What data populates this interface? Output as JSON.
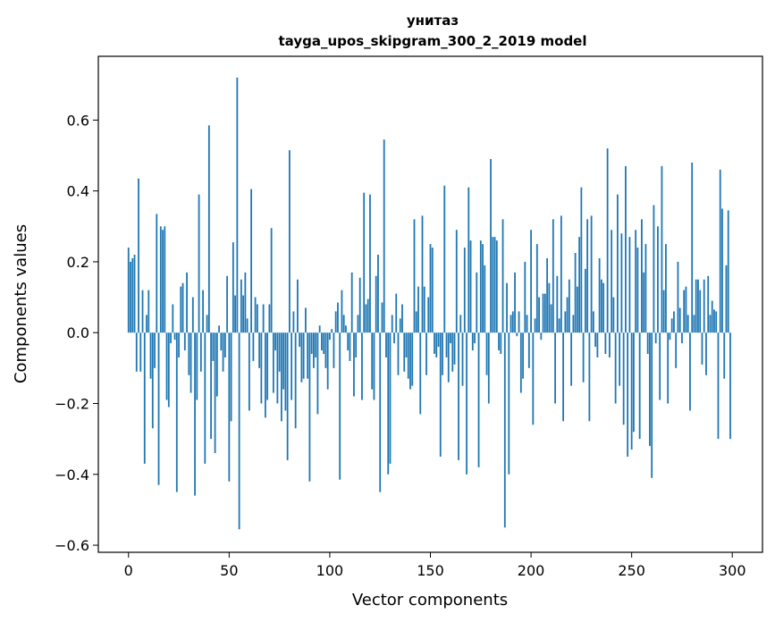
{
  "chart_data": {
    "type": "bar",
    "title": "унитаз",
    "subtitle": "tayga_upos_skipgram_300_2_2019 model",
    "xlabel": "Vector components",
    "ylabel": "Components values",
    "xlim": [
      -15,
      315
    ],
    "ylim": [
      -0.62,
      0.78
    ],
    "x_ticks": [
      0,
      50,
      100,
      150,
      200,
      250,
      300
    ],
    "y_ticks": [
      -0.6,
      -0.4,
      -0.2,
      0.0,
      0.2,
      0.4,
      0.6
    ],
    "y_tick_labels": [
      "−0.6",
      "−0.4",
      "−0.2",
      "0.0",
      "0.2",
      "0.4",
      "0.6"
    ],
    "bar_color": "#1f77b4",
    "x": [
      0,
      1,
      2,
      3,
      4,
      5,
      6,
      7,
      8,
      9,
      10,
      11,
      12,
      13,
      14,
      15,
      16,
      17,
      18,
      19,
      20,
      21,
      22,
      23,
      24,
      25,
      26,
      27,
      28,
      29,
      30,
      31,
      32,
      33,
      34,
      35,
      36,
      37,
      38,
      39,
      40,
      41,
      42,
      43,
      44,
      45,
      46,
      47,
      48,
      49,
      50,
      51,
      52,
      53,
      54,
      55,
      56,
      57,
      58,
      59,
      60,
      61,
      62,
      63,
      64,
      65,
      66,
      67,
      68,
      69,
      70,
      71,
      72,
      73,
      74,
      75,
      76,
      77,
      78,
      79,
      80,
      81,
      82,
      83,
      84,
      85,
      86,
      87,
      88,
      89,
      90,
      91,
      92,
      93,
      94,
      95,
      96,
      97,
      98,
      99,
      100,
      101,
      102,
      103,
      104,
      105,
      106,
      107,
      108,
      109,
      110,
      111,
      112,
      113,
      114,
      115,
      116,
      117,
      118,
      119,
      120,
      121,
      122,
      123,
      124,
      125,
      126,
      127,
      128,
      129,
      130,
      131,
      132,
      133,
      134,
      135,
      136,
      137,
      138,
      139,
      140,
      141,
      142,
      143,
      144,
      145,
      146,
      147,
      148,
      149,
      150,
      151,
      152,
      153,
      154,
      155,
      156,
      157,
      158,
      159,
      160,
      161,
      162,
      163,
      164,
      165,
      166,
      167,
      168,
      169,
      170,
      171,
      172,
      173,
      174,
      175,
      176,
      177,
      178,
      179,
      180,
      181,
      182,
      183,
      184,
      185,
      186,
      187,
      188,
      189,
      190,
      191,
      192,
      193,
      194,
      195,
      196,
      197,
      198,
      199,
      200,
      201,
      202,
      203,
      204,
      205,
      206,
      207,
      208,
      209,
      210,
      211,
      212,
      213,
      214,
      215,
      216,
      217,
      218,
      219,
      220,
      221,
      222,
      223,
      224,
      225,
      226,
      227,
      228,
      229,
      230,
      231,
      232,
      233,
      234,
      235,
      236,
      237,
      238,
      239,
      240,
      241,
      242,
      243,
      244,
      245,
      246,
      247,
      248,
      249,
      250,
      251,
      252,
      253,
      254,
      255,
      256,
      257,
      258,
      259,
      260,
      261,
      262,
      263,
      264,
      265,
      266,
      267,
      268,
      269,
      270,
      271,
      272,
      273,
      274,
      275,
      276,
      277,
      278,
      279,
      280,
      281,
      282,
      283,
      284,
      285,
      286,
      287,
      288,
      289,
      290,
      291,
      292,
      293,
      294,
      295,
      296,
      297,
      298,
      299
    ],
    "values": [
      0.24,
      0.2,
      0.21,
      0.22,
      -0.11,
      0.435,
      -0.11,
      0.12,
      -0.37,
      0.05,
      0.12,
      -0.13,
      -0.27,
      -0.1,
      0.335,
      -0.43,
      0.3,
      0.29,
      0.3,
      -0.19,
      -0.21,
      -0.03,
      0.08,
      -0.02,
      -0.45,
      -0.07,
      0.13,
      0.14,
      -0.05,
      0.17,
      -0.12,
      -0.17,
      0.1,
      -0.46,
      -0.19,
      0.39,
      -0.11,
      0.12,
      -0.37,
      0.05,
      0.585,
      -0.3,
      -0.08,
      -0.34,
      -0.18,
      0.02,
      -0.05,
      -0.11,
      -0.07,
      0.16,
      -0.42,
      -0.25,
      0.255,
      0.105,
      0.72,
      -0.555,
      0.15,
      0.105,
      0.17,
      0.04,
      -0.22,
      0.405,
      -0.08,
      0.1,
      0.08,
      -0.1,
      -0.2,
      0.08,
      -0.24,
      -0.19,
      0.08,
      0.295,
      -0.17,
      -0.05,
      -0.2,
      -0.11,
      -0.25,
      -0.16,
      -0.22,
      -0.36,
      0.515,
      -0.19,
      0.06,
      -0.27,
      0.15,
      -0.04,
      -0.14,
      -0.13,
      0.07,
      -0.13,
      -0.42,
      -0.06,
      -0.1,
      -0.07,
      -0.23,
      0.02,
      -0.05,
      -0.06,
      -0.1,
      -0.16,
      -0.02,
      0.01,
      -0.1,
      0.06,
      0.085,
      -0.415,
      0.12,
      0.05,
      0.02,
      -0.05,
      -0.08,
      0.17,
      -0.18,
      -0.07,
      0.05,
      0.155,
      -0.19,
      0.395,
      0.08,
      0.095,
      0.39,
      -0.16,
      -0.19,
      0.16,
      0.22,
      -0.45,
      0.085,
      0.545,
      -0.07,
      -0.4,
      -0.37,
      0.05,
      -0.03,
      0.11,
      -0.12,
      0.04,
      0.08,
      -0.11,
      -0.07,
      -0.13,
      -0.16,
      -0.15,
      0.32,
      0.06,
      0.13,
      -0.23,
      0.33,
      0.13,
      -0.12,
      0.1,
      0.25,
      0.24,
      -0.06,
      -0.07,
      -0.04,
      -0.35,
      -0.12,
      0.415,
      -0.07,
      -0.14,
      -0.03,
      -0.11,
      -0.09,
      0.29,
      -0.36,
      0.05,
      -0.15,
      0.24,
      -0.4,
      0.41,
      0.26,
      -0.05,
      -0.03,
      0.17,
      -0.38,
      0.26,
      0.25,
      0.19,
      -0.12,
      -0.2,
      0.49,
      0.27,
      0.27,
      0.26,
      -0.05,
      -0.06,
      0.32,
      -0.55,
      0.14,
      -0.4,
      0.05,
      0.06,
      0.17,
      -0.01,
      0.06,
      -0.17,
      -0.13,
      0.2,
      0.05,
      -0.1,
      0.29,
      -0.26,
      0.04,
      0.25,
      0.1,
      -0.02,
      0.11,
      0.11,
      0.21,
      0.14,
      0.08,
      0.32,
      -0.2,
      0.16,
      0.04,
      0.33,
      -0.25,
      0.06,
      0.1,
      0.15,
      -0.15,
      0.05,
      0.225,
      0.13,
      0.27,
      0.41,
      -0.14,
      0.18,
      0.32,
      -0.25,
      0.33,
      0.06,
      -0.04,
      -0.07,
      0.21,
      0.15,
      0.14,
      -0.06,
      0.52,
      -0.07,
      0.29,
      0.1,
      -0.2,
      0.39,
      -0.15,
      0.28,
      -0.26,
      0.47,
      -0.35,
      0.27,
      -0.33,
      -0.28,
      0.29,
      0.24,
      -0.3,
      0.32,
      0.17,
      0.25,
      -0.06,
      -0.32,
      -0.41,
      0.36,
      -0.03,
      0.3,
      -0.19,
      0.47,
      0.12,
      0.25,
      -0.2,
      -0.02,
      0.04,
      0.06,
      -0.1,
      0.2,
      0.07,
      -0.03,
      0.12,
      0.13,
      0.05,
      -0.22,
      0.48,
      0.05,
      0.15,
      0.15,
      0.12,
      -0.09,
      0.15,
      -0.12,
      0.16,
      0.05,
      0.09,
      0.065,
      0.06,
      -0.3,
      0.46,
      0.35,
      -0.13,
      0.19,
      0.345,
      -0.3
    ]
  }
}
